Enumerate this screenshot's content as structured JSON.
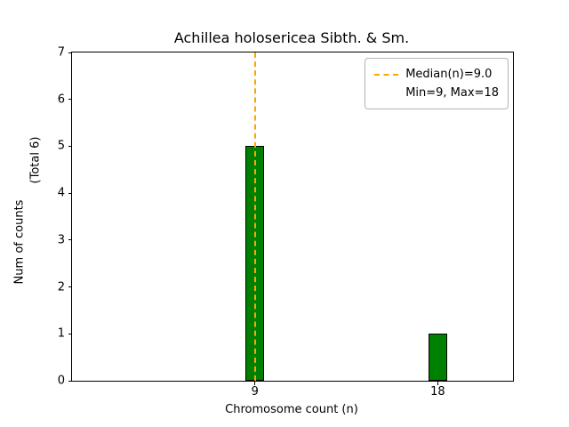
{
  "figure": {
    "title": "Achillea holosericea Sibth. & Sm.",
    "xlabel": "Chromosome count (n)",
    "ylabel_line1": "Num of counts",
    "ylabel_line2": "(Total 6)"
  },
  "legend": {
    "entries": [
      {
        "label": "Median(n)=9.0",
        "handle": "dashed-line",
        "color": "#FFA500"
      },
      {
        "label": "Min=9, Max=18",
        "handle": "none"
      }
    ]
  },
  "chart_data": {
    "type": "bar",
    "title": "Achillea holosericea Sibth. & Sm.",
    "xlabel": "Chromosome count (n)",
    "ylabel": "Num of counts (Total 6)",
    "x": [
      9,
      18
    ],
    "values": [
      5,
      1
    ],
    "categories": [
      "9",
      "18"
    ],
    "bar_color": "#008000",
    "bar_edge_color": "#000000",
    "bar_width": 0.9,
    "xlim": [
      0,
      21.7
    ],
    "ylim": [
      0,
      7
    ],
    "yticks": [
      0,
      1,
      2,
      3,
      4,
      5,
      6,
      7
    ],
    "xticks": [
      9,
      18
    ],
    "median_line": {
      "x": 9,
      "color": "#FFA500",
      "style": "dashed",
      "label": "Median(n)=9.0"
    },
    "annotations": {
      "total_counts": 6,
      "min": 9,
      "max": 18,
      "median": 9.0
    },
    "grid": false,
    "legend_position": "upper right"
  }
}
